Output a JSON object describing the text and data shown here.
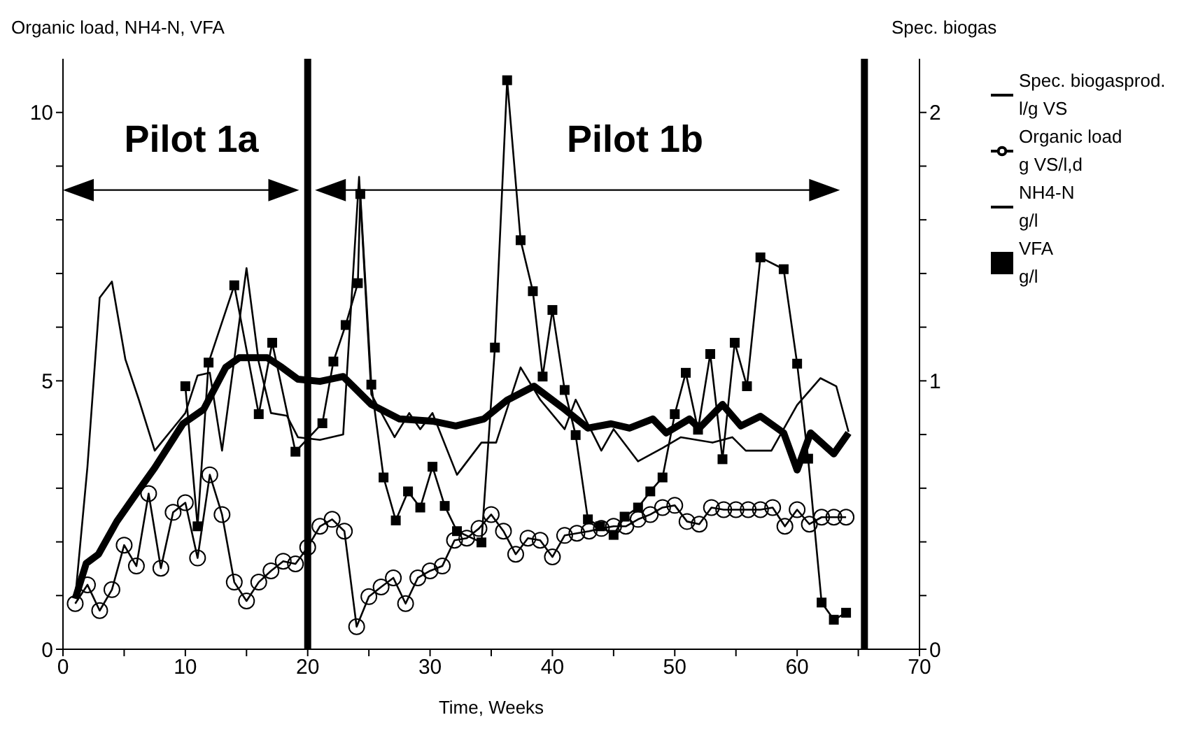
{
  "chart_data": {
    "type": "line",
    "xlabel": "Time, Weeks",
    "ylabel": "Organic load, NH4-N, VFA",
    "y2label": "Spec. biogas",
    "xlim": [
      0,
      70
    ],
    "ylim": [
      0,
      11
    ],
    "y2lim": [
      0,
      2.2
    ],
    "xticks": [
      0,
      {
        "value": 5,
        "label": null
      },
      10,
      {
        "value": 15,
        "label": null
      },
      20,
      {
        "value": 25,
        "label": null
      },
      30,
      {
        "value": 35,
        "label": null
      },
      40,
      {
        "value": 45,
        "label": null
      },
      50,
      {
        "value": 55,
        "label": null
      },
      60,
      {
        "value": 65,
        "label": null
      },
      70
    ],
    "yticks": [
      0,
      {
        "value": 1,
        "label": null
      },
      {
        "value": 2,
        "label": null
      },
      {
        "value": 3,
        "label": null
      },
      {
        "value": 4,
        "label": null
      },
      5,
      {
        "value": 6,
        "label": null
      },
      {
        "value": 7,
        "label": null
      },
      {
        "value": 8,
        "label": null
      },
      {
        "value": 9,
        "label": null
      },
      10
    ],
    "y2ticks": [
      0,
      {
        "value": 0.2,
        "label": null
      },
      {
        "value": 0.4,
        "label": null
      },
      {
        "value": 0.6,
        "label": null
      },
      {
        "value": 0.8,
        "label": null
      },
      1,
      {
        "value": 1.2,
        "label": null
      },
      {
        "value": 1.4,
        "label": null
      },
      {
        "value": 1.6,
        "label": null
      },
      {
        "value": 1.8,
        "label": null
      },
      2
    ],
    "legend": "right",
    "ref_lines": [
      {
        "axis": "x",
        "value": 20,
        "color": "#000000"
      },
      {
        "axis": "x",
        "value": 65.5,
        "color": "#000000"
      }
    ],
    "annotations": [
      "Pilot 1a",
      "Pilot 1b"
    ],
    "series": [
      {
        "name": "Spec. biogasprod.\nl/g VS",
        "color": "#000000",
        "axis": "y2",
        "marker": "none",
        "x": [
          1,
          2,
          3,
          4,
          5.1,
          6.2,
          7.5,
          10,
          11,
          12,
          13,
          15,
          16,
          17,
          18.3,
          19.2,
          21,
          22.9,
          24.2,
          25.2,
          27.1,
          28.3,
          29.2,
          30.2,
          32.2,
          34.2,
          35.4,
          37.4,
          39,
          41,
          41.9,
          44,
          45,
          47,
          49,
          50.5,
          53.1,
          54.7,
          55.8,
          57.9,
          60,
          61.9,
          63.2,
          64.2
        ],
        "values": [
          0.19,
          0.68,
          1.31,
          1.37,
          1.08,
          0.93,
          0.74,
          0.88,
          1.02,
          1.03,
          0.74,
          1.42,
          1.07,
          0.88,
          0.87,
          0.79,
          0.78,
          0.8,
          1.76,
          0.95,
          0.79,
          0.88,
          0.82,
          0.88,
          0.65,
          0.77,
          0.77,
          1.05,
          0.93,
          0.82,
          0.93,
          0.74,
          0.82,
          0.7,
          0.75,
          0.79,
          0.77,
          0.79,
          0.74,
          0.74,
          0.91,
          1.01,
          0.98,
          0.81
        ]
      },
      {
        "name": "Organic load\ng VS/l,d",
        "color": "#000000",
        "marker": "circle",
        "x": [
          1,
          2,
          3,
          4,
          5,
          6,
          7,
          8,
          9,
          10,
          11,
          12,
          13,
          14,
          15,
          16,
          17,
          18,
          19,
          20,
          21,
          22,
          23,
          24,
          25,
          26,
          27,
          28,
          29,
          30,
          31,
          32,
          33,
          34,
          35,
          36,
          37,
          38,
          39,
          40,
          41,
          42,
          43,
          44,
          45,
          46,
          47,
          48,
          49,
          50,
          51,
          52,
          53,
          54,
          55,
          56,
          57,
          58,
          59,
          60,
          61,
          62,
          63,
          64
        ],
        "values": [
          0.85,
          1.2,
          0.72,
          1.11,
          1.94,
          1.55,
          2.9,
          1.51,
          2.55,
          2.73,
          1.7,
          3.25,
          2.51,
          1.25,
          0.9,
          1.25,
          1.46,
          1.64,
          1.59,
          1.9,
          2.29,
          2.42,
          2.2,
          0.42,
          0.98,
          1.16,
          1.33,
          0.85,
          1.33,
          1.46,
          1.55,
          2.03,
          2.07,
          2.25,
          2.51,
          2.2,
          1.77,
          2.07,
          2.03,
          1.72,
          2.12,
          2.16,
          2.2,
          2.25,
          2.29,
          2.29,
          2.42,
          2.51,
          2.64,
          2.68,
          2.38,
          2.33,
          2.64,
          2.6,
          2.6,
          2.6,
          2.6,
          2.64,
          2.29,
          2.6,
          2.33,
          2.46,
          2.46,
          2.46
        ]
      },
      {
        "name": "NH4-N\ng/l",
        "color": "#000000",
        "marker": "none",
        "x": [
          1,
          1.9,
          2.9,
          4.4,
          6,
          7.5,
          9.8,
          11.5,
          13.3,
          14.4,
          16.7,
          17.9,
          19.2,
          21,
          22.9,
          25.2,
          27.5,
          30.2,
          32.1,
          34.4,
          36.3,
          38.5,
          41,
          42.9,
          44.8,
          46.3,
          48.2,
          49.3,
          51.2,
          52,
          53.9,
          55.4,
          57,
          58.9,
          60,
          61.1,
          63,
          64.2
        ],
        "values": [
          0.94,
          1.6,
          1.77,
          2.38,
          2.9,
          3.38,
          4.2,
          4.47,
          5.25,
          5.43,
          5.43,
          5.25,
          5.03,
          4.99,
          5.08,
          4.56,
          4.29,
          4.25,
          4.16,
          4.29,
          4.64,
          4.9,
          4.47,
          4.12,
          4.2,
          4.12,
          4.29,
          4.03,
          4.29,
          4.12,
          4.56,
          4.16,
          4.34,
          4.03,
          3.34,
          4.03,
          3.64,
          4.03
        ]
      },
      {
        "name": "VFA\ng/l",
        "color": "#000000",
        "marker": "square",
        "x": [
          10,
          11,
          11.9,
          14,
          16,
          17.1,
          19,
          21.2,
          22.1,
          23.1,
          24.1,
          24.3,
          25.2,
          26.2,
          27.2,
          28.2,
          29.2,
          30.2,
          31.2,
          32.2,
          34.2,
          35.3,
          36.3,
          37.4,
          38.4,
          39.2,
          40,
          41,
          41.9,
          42.9,
          43.9,
          45,
          45.9,
          47,
          48,
          49,
          50,
          50.9,
          51.9,
          52.9,
          53.9,
          54.9,
          55.9,
          57,
          58.9,
          60,
          60.9,
          62,
          63,
          64
        ],
        "values": [
          4.9,
          2.29,
          5.34,
          6.78,
          4.38,
          5.71,
          3.68,
          4.21,
          5.36,
          6.04,
          6.82,
          8.48,
          4.93,
          3.2,
          2.4,
          2.94,
          2.64,
          3.4,
          2.67,
          2.2,
          1.99,
          5.62,
          10.6,
          7.62,
          6.67,
          5.08,
          6.32,
          4.83,
          3.99,
          2.42,
          2.29,
          2.13,
          2.47,
          2.64,
          2.94,
          3.2,
          4.38,
          5.15,
          4.09,
          5.5,
          3.54,
          5.71,
          4.9,
          7.3,
          7.08,
          5.32,
          3.55,
          0.87,
          0.55,
          0.68
        ]
      }
    ]
  }
}
